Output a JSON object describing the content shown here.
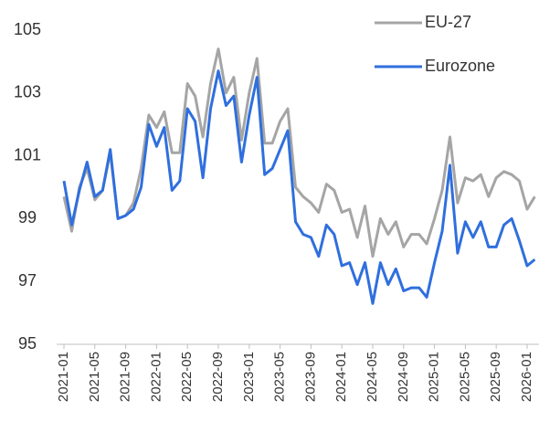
{
  "chart_data": {
    "type": "line",
    "categories": [
      "2021-01",
      null,
      null,
      null,
      "2021-05",
      null,
      null,
      null,
      "2021-09",
      null,
      null,
      null,
      "2022-01",
      null,
      null,
      null,
      "2022-05",
      null,
      null,
      null,
      "2022-09",
      null,
      null,
      null,
      "2023-01",
      null,
      null,
      null,
      "2023-05",
      null,
      null,
      null,
      "2023-09",
      null,
      null,
      null,
      "2024-01",
      null,
      null,
      null,
      "2024-05",
      null,
      null,
      null,
      "2024-09",
      null,
      null,
      null,
      "2025-01",
      null,
      null,
      null,
      "2025-05",
      null,
      null,
      null,
      "2025-09",
      null,
      null,
      null,
      "2026-01",
      null
    ],
    "series": [
      {
        "name": "EU-27",
        "color": "#a5a5a5",
        "values": [
          99.7,
          98.6,
          100.0,
          100.6,
          99.6,
          99.9,
          101.1,
          99.0,
          99.1,
          99.5,
          100.6,
          102.3,
          101.9,
          102.4,
          101.1,
          101.1,
          103.3,
          102.9,
          101.6,
          103.3,
          104.4,
          103.0,
          103.5,
          101.5,
          103.0,
          104.1,
          101.4,
          101.4,
          102.1,
          102.5,
          100.0,
          99.7,
          99.5,
          99.2,
          100.1,
          99.9,
          99.2,
          99.3,
          98.4,
          99.4,
          97.8,
          99.0,
          98.5,
          98.9,
          98.1,
          98.5,
          98.5,
          98.2,
          99.0,
          99.9,
          101.6,
          99.5,
          100.3,
          100.2,
          100.4,
          99.7,
          100.3,
          100.5,
          100.4,
          100.2,
          99.3,
          99.7
        ]
      },
      {
        "name": "Eurozone",
        "color": "#2f6fde",
        "values": [
          100.2,
          98.8,
          99.9,
          100.8,
          99.7,
          99.9,
          101.2,
          99.0,
          99.1,
          99.3,
          100.0,
          102.0,
          101.3,
          101.9,
          99.9,
          100.2,
          102.5,
          102.1,
          100.3,
          102.5,
          103.7,
          102.6,
          102.9,
          100.8,
          102.3,
          103.5,
          100.4,
          100.6,
          101.2,
          101.8,
          98.9,
          98.5,
          98.4,
          97.8,
          98.8,
          98.5,
          97.5,
          97.6,
          96.9,
          97.6,
          96.3,
          97.6,
          96.9,
          97.4,
          96.7,
          96.8,
          96.8,
          96.5,
          97.6,
          98.6,
          100.7,
          97.9,
          98.9,
          98.4,
          98.9,
          98.1,
          98.1,
          98.8,
          99.0,
          98.3,
          97.5,
          97.7
        ]
      }
    ],
    "ylim": [
      95,
      105
    ],
    "yticks": [
      95,
      97,
      99,
      101,
      103,
      105
    ],
    "legend": "upper right"
  }
}
